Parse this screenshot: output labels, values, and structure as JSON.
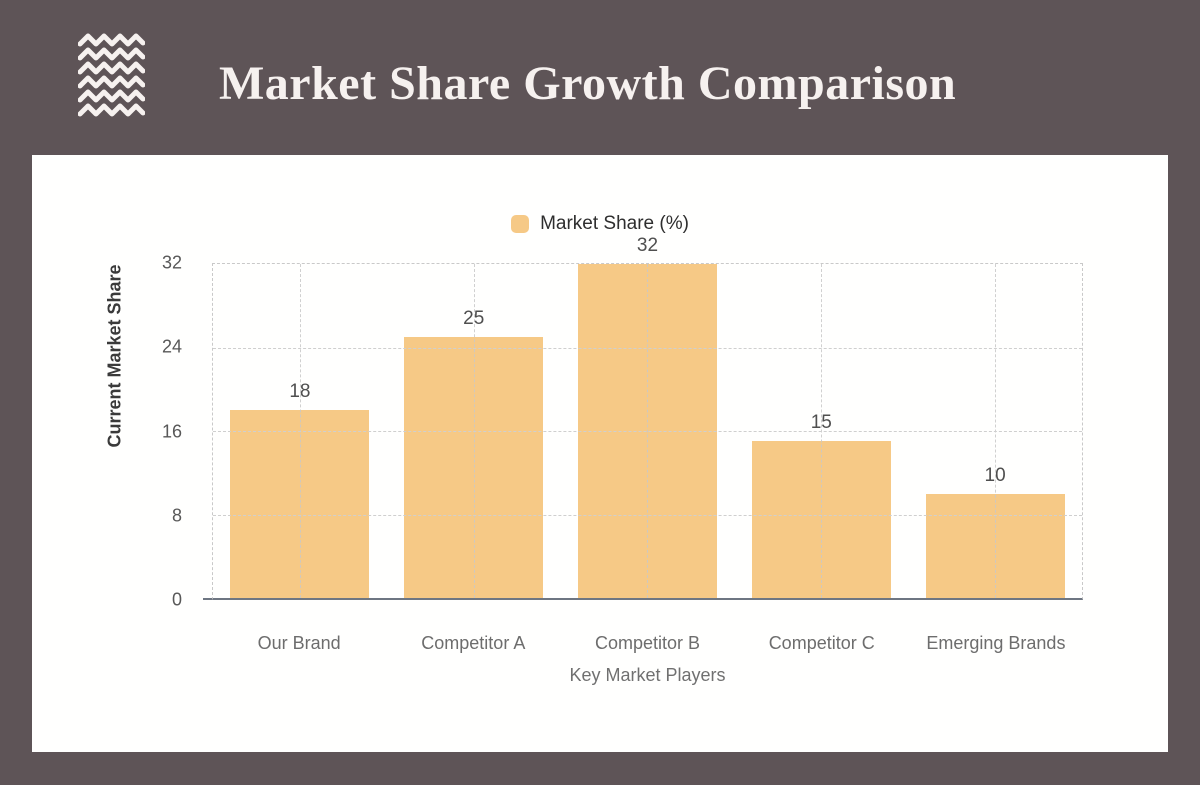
{
  "header": {
    "title": "Market Share Growth Comparison",
    "logo_icon": "waves-icon"
  },
  "chart_data": {
    "type": "bar",
    "categories": [
      "Our Brand",
      "Competitor A",
      "Competitor B",
      "Competitor C",
      "Emerging Brands"
    ],
    "values": [
      18,
      25,
      32,
      15,
      10
    ],
    "series": [
      {
        "name": "Market Share (%)",
        "values": [
          18,
          25,
          32,
          15,
          10
        ]
      }
    ],
    "legend_label": "Market Share (%)",
    "legend_position": "top",
    "title": "",
    "xlabel": "Key Market Players",
    "ylabel": "Current Market Share",
    "yticks": [
      32,
      24,
      16,
      8,
      0
    ],
    "ylim": [
      0,
      32
    ],
    "grid": "dashed",
    "bar_color": "#f6c986"
  },
  "colors": {
    "frame_background": "#5e5457",
    "card_background": "#fffffe",
    "title_text": "#f6f1ef",
    "bar_fill": "#f6c986",
    "grid_line": "#cfcfcf",
    "axis_line": "#6e7682",
    "tick_text": "#585858",
    "category_text": "#6d6d6d",
    "value_text": "#4f4f4f",
    "legend_text": "#2e2e2e"
  }
}
